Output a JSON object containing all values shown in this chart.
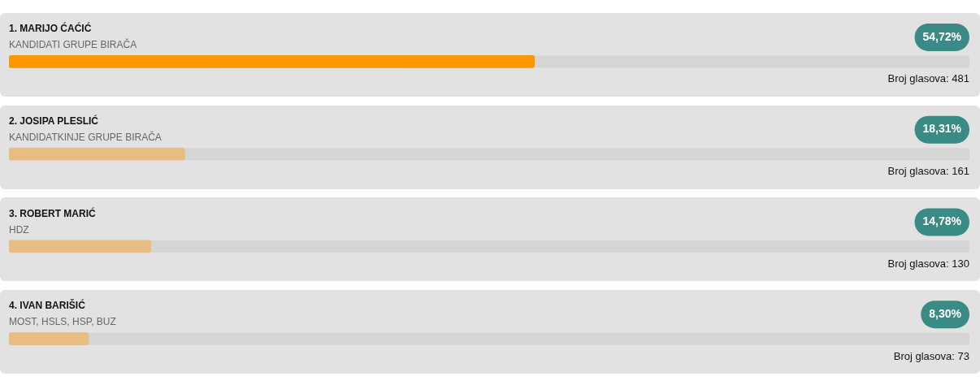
{
  "chart_data": {
    "type": "bar",
    "orientation": "horizontal",
    "categories": [
      "1. MARIJO ĆAĆIĆ",
      "2. JOSIPA PLESLIĆ",
      "3. ROBERT MARIĆ",
      "4. IVAN BARIŠIĆ"
    ],
    "values": [
      54.72,
      18.31,
      14.78,
      8.3
    ],
    "colors": [
      "#fb9800",
      "#e8bd84",
      "#e8bd84",
      "#e8bd84"
    ],
    "value_labels": [
      "54,72%",
      "18,31%",
      "14,78%",
      "8,30%"
    ],
    "xlim": [
      0,
      100
    ],
    "tick_labels": false,
    "annotations": [
      "KANDIDATI GRUPE BIRAČA",
      "Broj glasova: 481",
      "KANDIDATKINJE GRUPE BIRAČA",
      "Broj glasova: 161",
      "HDZ",
      "Broj glasova: 130",
      "MOST, HSLS, HSP, BUZ",
      "Broj glasova: 73"
    ]
  }
}
